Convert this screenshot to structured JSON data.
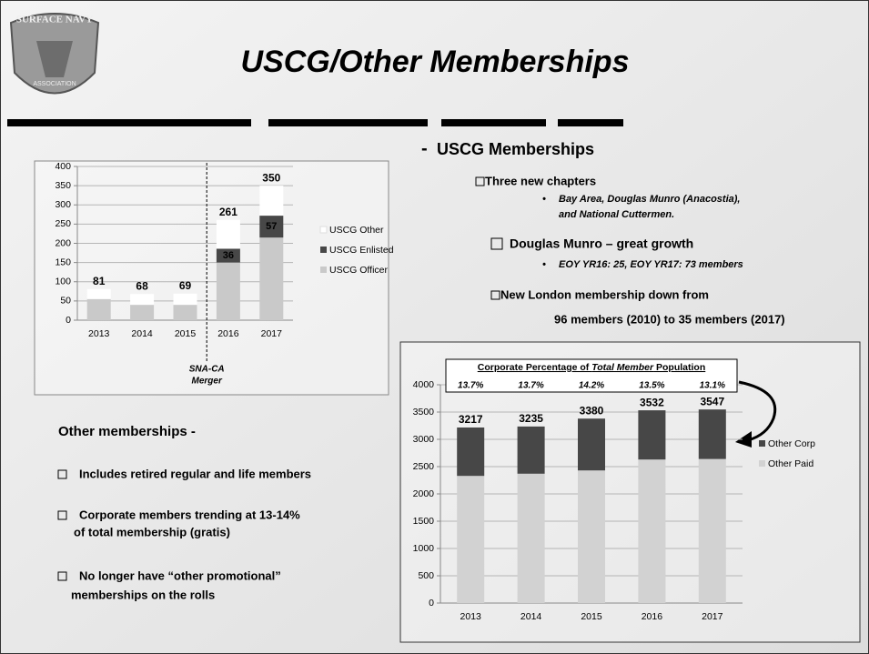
{
  "title": "USCG/Other Memberships",
  "logo": {
    "top": "SURFACE NAVY",
    "bottom": "ASSOCIATION"
  },
  "uscg": {
    "heading": "USCG Memberships",
    "items": [
      {
        "text": "Three new chapters",
        "sub": [
          "Bay Area, Douglas Munro (Anacostia),",
          "and National Cuttermen."
        ]
      },
      {
        "text": "Douglas Munro – great growth",
        "sub": [
          "EOY YR16: 25,  EOY YR17: 73 members"
        ]
      },
      {
        "text": "New London membership down from",
        "sub": [
          "96 members (2010) to 35 members (2017)"
        ]
      }
    ]
  },
  "other": {
    "heading": "Other memberships -",
    "items": [
      [
        "Includes retired regular and life members"
      ],
      [
        "Corporate members trending at 13-14%",
        "of total membership (gratis)"
      ],
      [
        "No longer have “other promotional”",
        "memberships on the rolls"
      ]
    ]
  },
  "chart_data": [
    {
      "type": "bar",
      "stacked": true,
      "categories": [
        "2013",
        "2014",
        "2015",
        "2016",
        "2017"
      ],
      "series": [
        {
          "name": "USCG Officer",
          "color": "#c9c9c9",
          "values": [
            55,
            40,
            40,
            150,
            215
          ]
        },
        {
          "name": "USCG Enlisted",
          "color": "#474747",
          "values": [
            null,
            null,
            null,
            36,
            57
          ]
        },
        {
          "name": "USCG Other",
          "color": "#ffffff",
          "values": [
            26,
            28,
            29,
            75,
            78
          ]
        }
      ],
      "totals": [
        81,
        68,
        69,
        261,
        350
      ],
      "annotation": [
        "SNA-CA",
        "Merger"
      ],
      "ylim": [
        0,
        400
      ],
      "yticks": [
        0,
        50,
        100,
        150,
        200,
        250,
        300,
        350,
        400
      ],
      "grid": true
    },
    {
      "type": "bar",
      "stacked": true,
      "categories": [
        "2013",
        "2014",
        "2015",
        "2016",
        "2017"
      ],
      "series": [
        {
          "name": "Other Paid",
          "color": "#d2d2d2",
          "values": [
            2330,
            2370,
            2430,
            2630,
            2640
          ]
        },
        {
          "name": "Other Corp",
          "color": "#474747",
          "values": [
            887,
            865,
            950,
            902,
            907
          ]
        }
      ],
      "totals": [
        3217,
        3235,
        3380,
        3532,
        3547
      ],
      "inset_title": [
        "Corporate  Percentage of ",
        "Total Member",
        "  Population"
      ],
      "percent_labels": [
        "13.7%",
        "13.7%",
        "14.2%",
        "13.5%",
        "13.1%"
      ],
      "ylim": [
        0,
        4000
      ],
      "yticks": [
        0,
        500,
        1000,
        1500,
        2000,
        2500,
        3000,
        3500,
        4000
      ],
      "grid": true
    }
  ]
}
